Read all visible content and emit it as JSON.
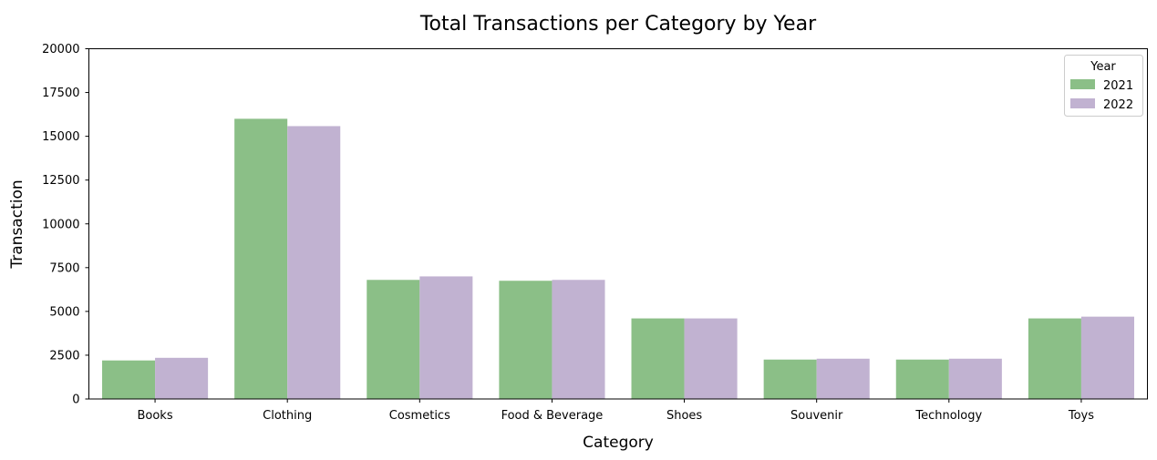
{
  "chart_data": {
    "type": "bar",
    "title": "Total Transactions per Category by Year",
    "xlabel": "Category",
    "ylabel": "Transaction",
    "categories": [
      "Books",
      "Clothing",
      "Cosmetics",
      "Food & Beverage",
      "Shoes",
      "Souvenir",
      "Technology",
      "Toys"
    ],
    "series": [
      {
        "name": "2021",
        "color": "#8bbf87",
        "values": [
          2200,
          16000,
          6800,
          6750,
          4600,
          2250,
          2250,
          4600
        ]
      },
      {
        "name": "2022",
        "color": "#c1b2d1",
        "values": [
          2350,
          15580,
          7000,
          6800,
          4600,
          2300,
          2300,
          4700
        ]
      }
    ],
    "ylim": [
      0,
      20000
    ],
    "yticks": [
      "0",
      "2500",
      "5000",
      "7500",
      "10000",
      "12500",
      "15000",
      "17500",
      "20000"
    ],
    "legend": {
      "title": "Year",
      "placement": "top-right"
    },
    "grid": false
  }
}
